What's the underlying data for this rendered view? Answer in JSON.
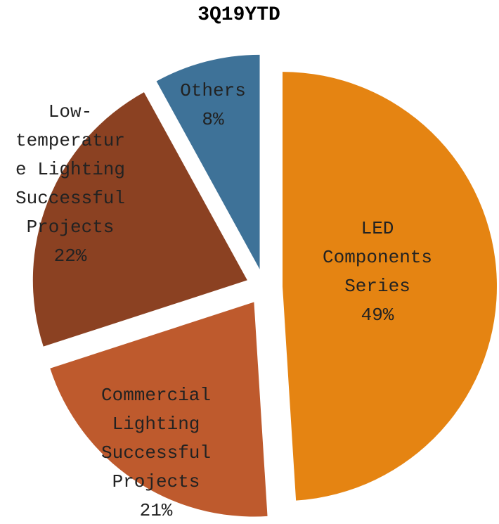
{
  "chart_data": {
    "type": "pie",
    "title": "3Q19YTD",
    "categories": [
      "LED Components Series",
      "Commercial Lighting Successful Projects",
      "Low-temperature Lighting Successful Projects",
      "Others"
    ],
    "values": [
      49,
      21,
      22,
      8
    ],
    "value_labels": [
      "49%",
      "21%",
      "22%",
      "8%"
    ],
    "colors": [
      "#e58412",
      "#be5a2d",
      "#8b4122",
      "#3e7298"
    ]
  }
}
